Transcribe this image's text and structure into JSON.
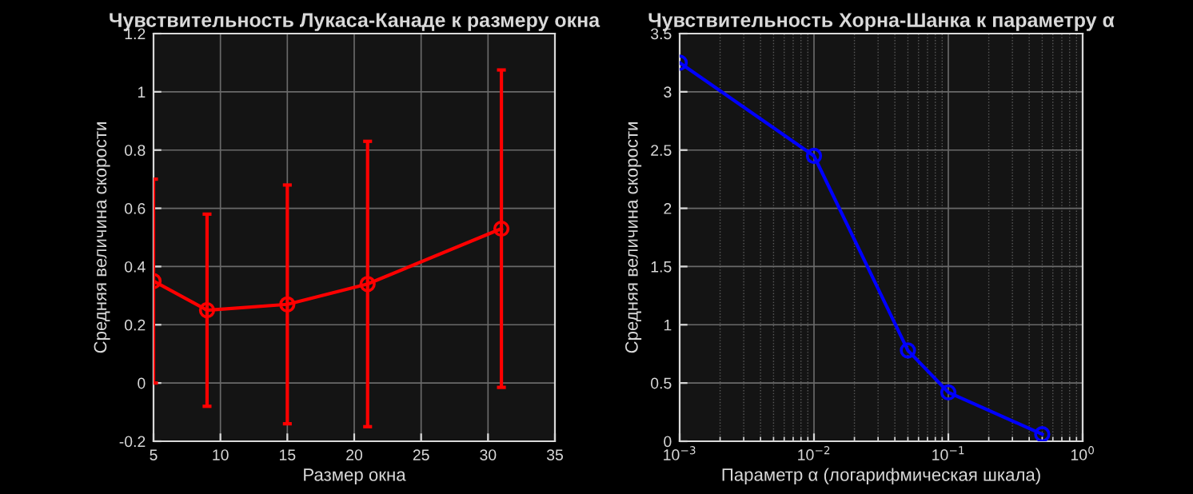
{
  "chart_data": [
    {
      "type": "line",
      "title": "Чувствительность Лукаса-Канаде к размеру окна",
      "xlabel": "Размер окна",
      "ylabel": "Средняя величина скорости",
      "x": [
        5,
        9,
        15,
        21,
        31
      ],
      "series": [
        {
          "color": "#ff0000",
          "values": [
            0.35,
            0.25,
            0.27,
            0.34,
            0.53
          ],
          "errors": [
            0.35,
            0.33,
            0.41,
            0.49,
            0.545
          ]
        }
      ],
      "xlim": [
        5,
        35
      ],
      "xticks": [
        5,
        10,
        15,
        20,
        25,
        30,
        35
      ],
      "ylim": [
        -0.2,
        1.2
      ],
      "yticks": [
        -0.2,
        0,
        0.2,
        0.4,
        0.6,
        0.8,
        1,
        1.2
      ],
      "grid": true,
      "marker": "circle",
      "line_style": "solid"
    },
    {
      "type": "line",
      "title": "Чувствительность Хорна-Шанка к параметру α",
      "xlabel": "Параметр α (логарифмическая шкала)",
      "ylabel": "Средняя величина скорости",
      "x": [
        0.001,
        0.01,
        0.05,
        0.1,
        0.5
      ],
      "series": [
        {
          "color": "#0000ff",
          "values": [
            3.25,
            2.45,
            0.78,
            0.42,
            0.06
          ]
        }
      ],
      "log": "x",
      "xlim": [
        0.001,
        1
      ],
      "xticks": [
        {
          "value": 0.001,
          "label": "10$^{−3}$"
        },
        {
          "value": 0.01,
          "label": "10$^{−2}$"
        },
        {
          "value": 0.1,
          "label": "10$^{−1}$"
        },
        {
          "value": 1,
          "label": "10$^{0}$"
        }
      ],
      "ylim": [
        0,
        3.5
      ],
      "yticks": [
        0,
        0.5,
        1,
        1.5,
        2,
        2.5,
        3,
        3.5
      ],
      "grid": true,
      "marker": "circle",
      "line_style": "solid"
    }
  ]
}
